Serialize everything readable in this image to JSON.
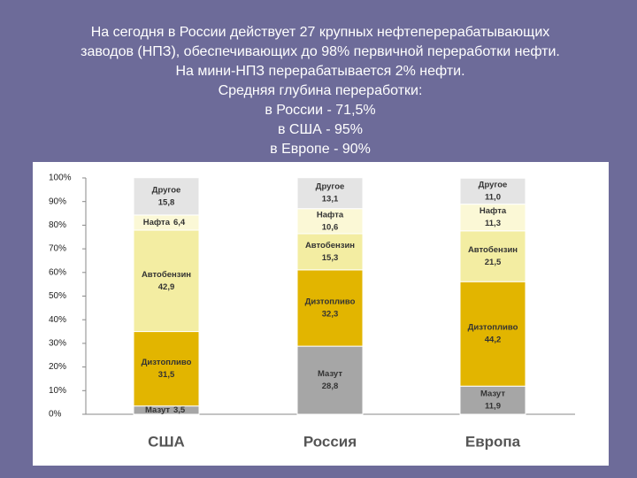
{
  "slide": {
    "text_lines": [
      "На сегодня в России действует 27 крупных нефтеперерабатывающих",
      "заводов (НПЗ), обеспечивающих до 98% первичной переработки нефти.",
      "На мини-НПЗ перерабатывается 2% нефти.",
      "Средняя глубина переработки:",
      "в России - 71,5%",
      "в США - 95%",
      "в Европе - 90%"
    ]
  },
  "chart_data": {
    "type": "stacked_bar",
    "categories": [
      "США",
      "Россия",
      "Европа"
    ],
    "series": [
      {
        "name": "Мазут",
        "color": "#a6a6a6",
        "values": [
          3.5,
          28.8,
          11.9
        ],
        "value_labels": [
          "3,5",
          "28,8",
          "11,9"
        ]
      },
      {
        "name": "Дизтопливо",
        "color": "#e2b500",
        "values": [
          31.5,
          32.3,
          44.2
        ],
        "value_labels": [
          "31,5",
          "32,3",
          "44,2"
        ]
      },
      {
        "name": "Автобензин",
        "color": "#f3eda2",
        "values": [
          42.9,
          15.3,
          21.5
        ],
        "value_labels": [
          "42,9",
          "15,3",
          "21,5"
        ]
      },
      {
        "name": "Нафта",
        "color": "#fbf8d6",
        "values": [
          6.4,
          10.6,
          11.3
        ],
        "value_labels": [
          "6,4",
          "10,6",
          "11,3"
        ]
      },
      {
        "name": "Другое",
        "color": "#e4e4e4",
        "values": [
          15.8,
          13.1,
          11.0
        ],
        "value_labels": [
          "15,8",
          "13,1",
          "11,0"
        ]
      }
    ],
    "ylim": [
      0,
      100
    ],
    "yticks": [
      {
        "value": 0,
        "label": "0%"
      },
      {
        "value": 10,
        "label": "10%"
      },
      {
        "value": 20,
        "label": "20%"
      },
      {
        "value": 30,
        "label": "30%"
      },
      {
        "value": 40,
        "label": "40%"
      },
      {
        "value": 50,
        "label": "50%"
      },
      {
        "value": 60,
        "label": "60%"
      },
      {
        "value": 70,
        "label": "70%"
      },
      {
        "value": 80,
        "label": "80%"
      },
      {
        "value": 90,
        "label": "90%"
      },
      {
        "value": 100,
        "label": "100%"
      }
    ]
  }
}
